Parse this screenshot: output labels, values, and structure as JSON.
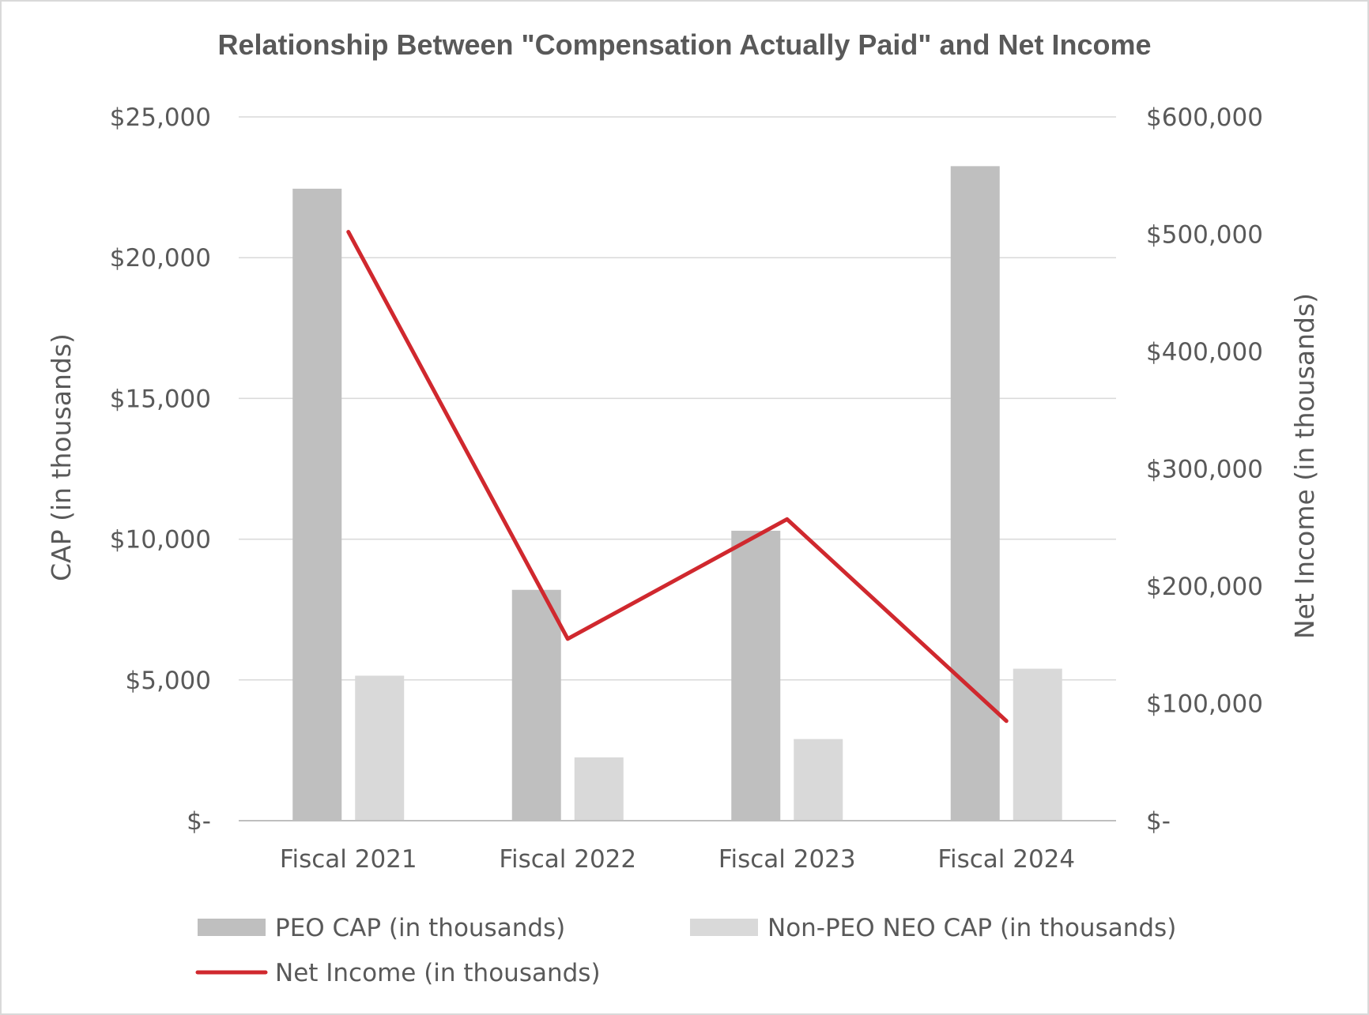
{
  "chart_data": {
    "type": "bar",
    "title": "Relationship Between \"Compensation Actually Paid\" and Net Income",
    "categories": [
      "Fiscal 2021",
      "Fiscal 2022",
      "Fiscal 2023",
      "Fiscal 2024"
    ],
    "series": [
      {
        "name": "PEO CAP (in thousands)",
        "type": "bar",
        "axis": "left",
        "color": "#bfbfbf",
        "values": [
          22450,
          8200,
          10300,
          23250
        ]
      },
      {
        "name": "Non-PEO NEO CAP (in thousands)",
        "type": "bar",
        "axis": "left",
        "color": "#d9d9d9",
        "values": [
          5150,
          2250,
          2900,
          5400
        ]
      },
      {
        "name": "Net Income (in thousands)",
        "type": "line",
        "axis": "right",
        "color": "#d0282e",
        "values": [
          502000,
          155000,
          257000,
          85000
        ]
      }
    ],
    "ylabel": "CAP (in thousands)",
    "y2label": "Net Income (in thousands)",
    "ylim": [
      0,
      25000
    ],
    "y2lim": [
      0,
      600000
    ],
    "yticks": [
      0,
      5000,
      10000,
      15000,
      20000,
      25000
    ],
    "ytick_labels": [
      "$-",
      "$5,000",
      "$10,000",
      "$15,000",
      "$20,000",
      "$25,000"
    ],
    "y2ticks": [
      0,
      100000,
      200000,
      300000,
      400000,
      500000,
      600000
    ],
    "y2tick_labels": [
      "$-",
      "$100,000",
      "$200,000",
      "$300,000",
      "$400,000",
      "$500,000",
      "$600,000"
    ],
    "grid": true,
    "legend_position": "bottom"
  }
}
